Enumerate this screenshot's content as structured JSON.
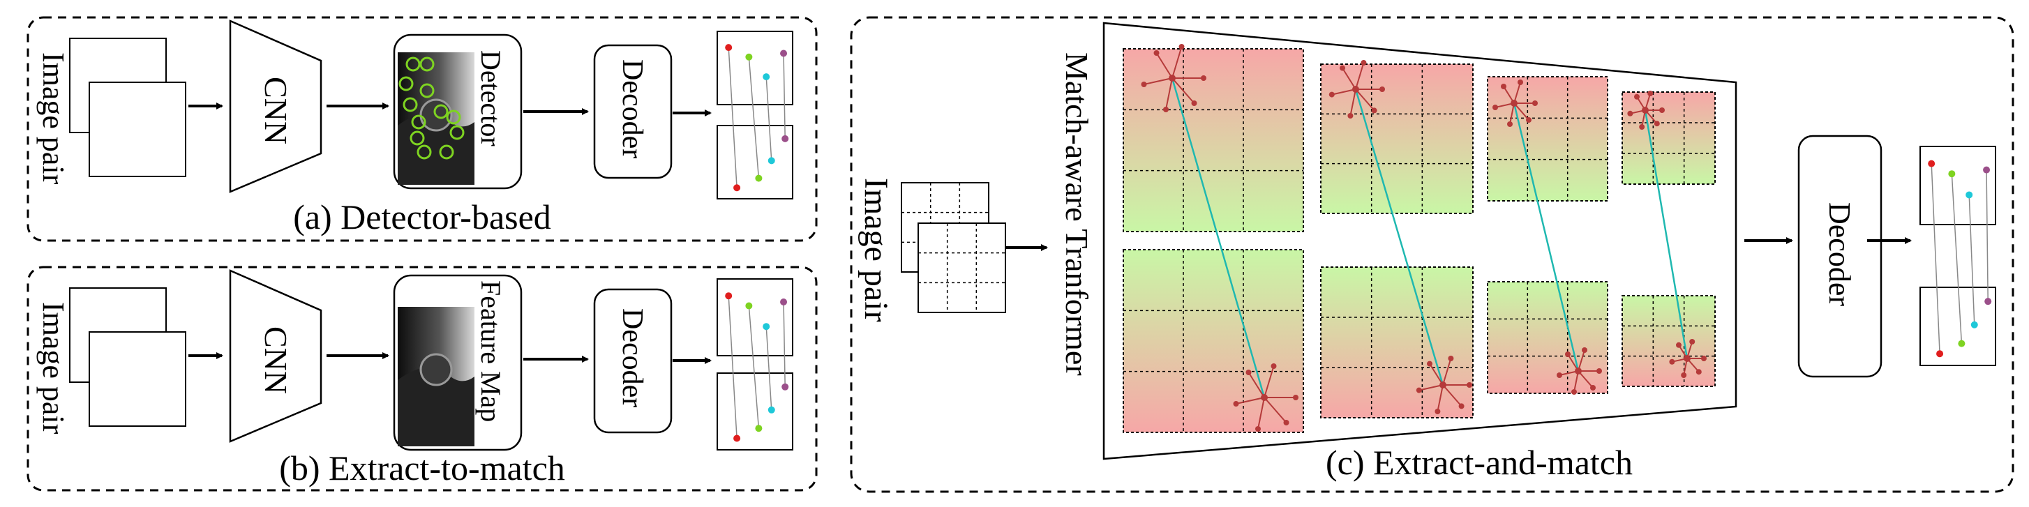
{
  "panel_a": {
    "input_label": "Image pair",
    "encoder_label": "CNN",
    "module_label": "Detector",
    "decoder_label": "Decoder",
    "caption": "(a) Detector-based"
  },
  "panel_b": {
    "input_label": "Image pair",
    "encoder_label": "CNN",
    "module_label": "Feature Map",
    "decoder_label": "Decoder",
    "caption": "(b) Extract-to-match"
  },
  "panel_c": {
    "input_label": "Image pair",
    "transformer_label": "Match-aware Tranformer",
    "decoder_label": "Decoder",
    "caption": "(c) Extract-and-match"
  },
  "colors": {
    "match_line": "#1fb8b0",
    "keypoint": "#b53a3a",
    "detector_ring": "#7ed321",
    "grid_red": "#f5aaaa",
    "grid_green": "#c8f5a8"
  }
}
